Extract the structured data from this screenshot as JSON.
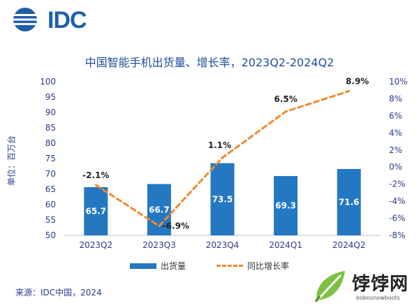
{
  "brand": {
    "logo_text": "IDC"
  },
  "title": "中国智能手机出货量、增长率，2023Q2-2024Q2",
  "source": "来源：IDC中国，2024",
  "watermark": {
    "text": "饽饽网",
    "url": "bobosnowboots"
  },
  "colors": {
    "bar": "#2478c2",
    "line": "#f08a30",
    "text": "#2b3a8a",
    "title": "#1f4e9a"
  },
  "chart_data": {
    "type": "bar",
    "categories": [
      "2023Q2",
      "2023Q3",
      "2023Q4",
      "2024Q1",
      "2024Q2"
    ],
    "series": [
      {
        "name": "出货量",
        "type": "bar",
        "axis": "left",
        "values": [
          65.7,
          66.7,
          73.5,
          69.3,
          71.6
        ]
      },
      {
        "name": "同比增长率",
        "type": "line",
        "style": "dashed",
        "axis": "right",
        "values": [
          -2.1,
          -6.9,
          1.1,
          6.5,
          8.9
        ]
      }
    ],
    "bar_labels": [
      "65.7",
      "66.7",
      "73.5",
      "69.3",
      "71.6"
    ],
    "line_labels": [
      "-2.1%",
      "-6.9%",
      "1.1%",
      "6.5%",
      "8.9%"
    ],
    "ylabel": "单位：百万台",
    "ylim": [
      50,
      100
    ],
    "yticks": [
      "50",
      "55",
      "60",
      "65",
      "70",
      "75",
      "80",
      "85",
      "90",
      "95",
      "100"
    ],
    "y2lim": [
      -8,
      10
    ],
    "y2ticks": [
      "-8%",
      "-6%",
      "-4%",
      "-2%",
      "0%",
      "2%",
      "4%",
      "6%",
      "8%",
      "10%"
    ],
    "grid": false,
    "legend": "bottom"
  }
}
